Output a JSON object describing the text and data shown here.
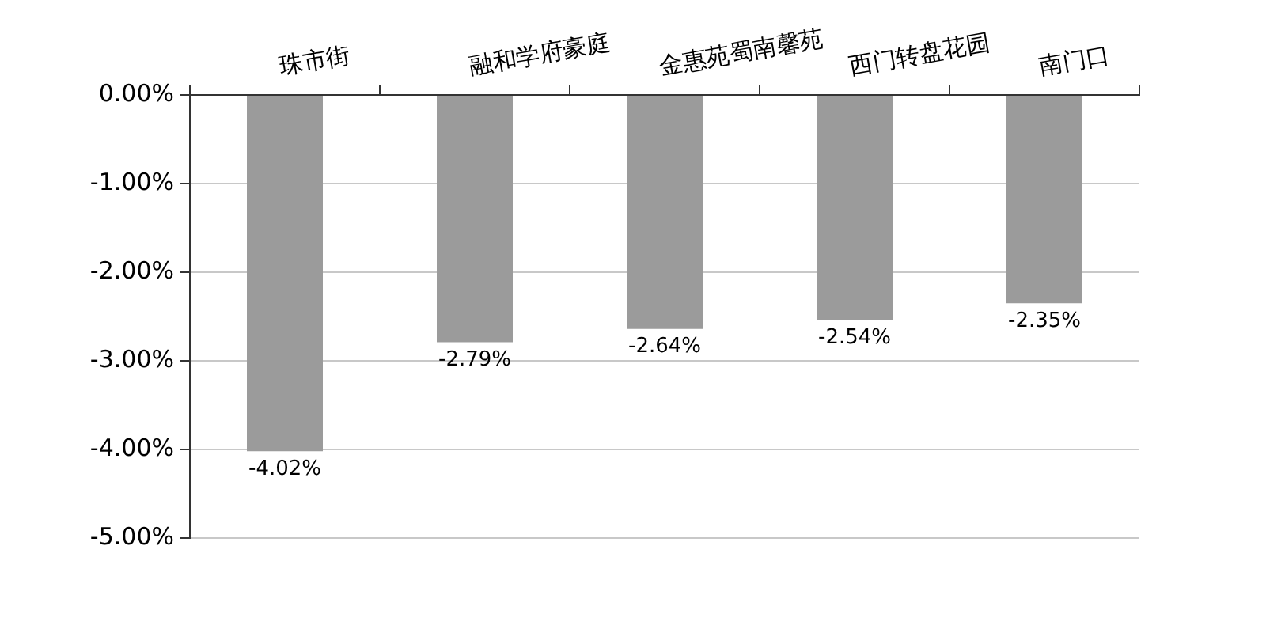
{
  "chart_data": {
    "type": "bar",
    "categories": [
      "珠市街",
      "融和学府豪庭",
      "金惠苑蜀南馨苑",
      "西门转盘花园",
      "南门口"
    ],
    "values": [
      -4.02,
      -2.79,
      -2.64,
      -2.54,
      -2.35
    ],
    "color": "#9b9b9b",
    "value_labels": [
      "-4.02%",
      "-2.79%",
      "-2.64%",
      "-2.54%",
      "-2.35%"
    ],
    "ylim": [
      -5,
      0
    ],
    "yticks": [
      {
        "value": 0,
        "label": "0.00%"
      },
      {
        "value": -1,
        "label": "-1.00%"
      },
      {
        "value": -2,
        "label": "-2.00%"
      },
      {
        "value": -3,
        "label": "-3.00%"
      },
      {
        "value": -4,
        "label": "-4.00%"
      },
      {
        "value": -5,
        "label": "-5.00%"
      }
    ],
    "grid": "y"
  }
}
